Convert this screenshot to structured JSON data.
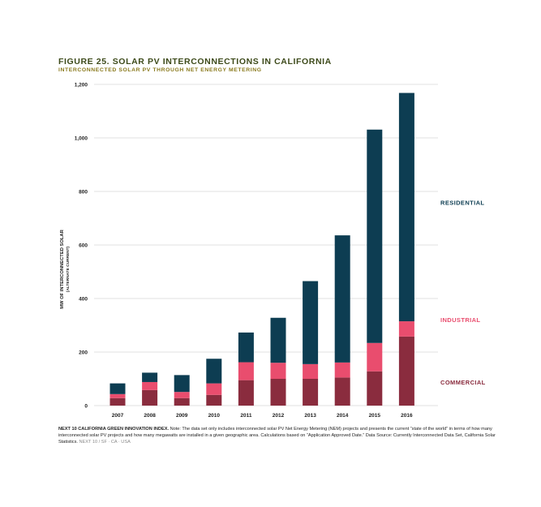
{
  "header": {
    "title": "FIGURE 25. SOLAR PV INTERCONNECTIONS IN CALIFORNIA",
    "subtitle": "INTERCONNECTED SOLAR PV THROUGH NET ENERGY METERING"
  },
  "footnote": {
    "source": "NEXT 10 CALIFORNIA GREEN INNOVATION INDEX.",
    "text": "Note: The data set only includes interconnected solar PV Net Energy Metering (NEM) projects and presents the current “state of the world” in terms of how many interconnected solar PV projects and how many megawatts are installed in a given geographic area. Calculations based on “Application Approved Date.” Data Source: Currently Interconnected Data Set, California Solar Statistics.",
    "tag": "NEXT 10 / SF · CA · USA"
  },
  "colors": {
    "commercial": "#8a2c3e",
    "industrial": "#e94d6e",
    "residential": "#0d3d52",
    "grid": "#d8d8d8",
    "title": "#3d4a1a",
    "subtitle": "#8a7a1e"
  },
  "chart_data": {
    "type": "bar",
    "stacked": true,
    "title": "FIGURE 25. SOLAR PV INTERCONNECTIONS IN CALIFORNIA",
    "subtitle": "INTERCONNECTED SOLAR PV THROUGH NET ENERGY METERING",
    "xlabel": "",
    "ylabel": "MW OF INTERCONNECTED SOLAR",
    "ylabel_sub": "(ALTERNATE CURRENT)",
    "ylim": [
      0,
      1200
    ],
    "yticks": [
      0,
      200,
      400,
      600,
      800,
      1000,
      1200
    ],
    "ytick_labels": [
      "0",
      "200",
      "400",
      "600",
      "800",
      "1,000",
      "1,200"
    ],
    "grid": true,
    "legend_placement": "right, beside each stack",
    "categories": [
      "2007",
      "2008",
      "2009",
      "2010",
      "2011",
      "2012",
      "2013",
      "2014",
      "2015",
      "2016"
    ],
    "series": [
      {
        "name": "COMMERCIAL",
        "color": "#8a2c3e",
        "values": [
          28,
          58,
          28,
          40,
          95,
          100,
          100,
          105,
          128,
          258
        ]
      },
      {
        "name": "INDUSTRIAL",
        "color": "#e94d6e",
        "values": [
          15,
          30,
          23,
          43,
          67,
          60,
          55,
          56,
          106,
          57
        ]
      },
      {
        "name": "RESIDENTIAL",
        "color": "#0d3d52",
        "values": [
          40,
          35,
          63,
          92,
          111,
          168,
          310,
          475,
          797,
          853
        ]
      }
    ]
  }
}
